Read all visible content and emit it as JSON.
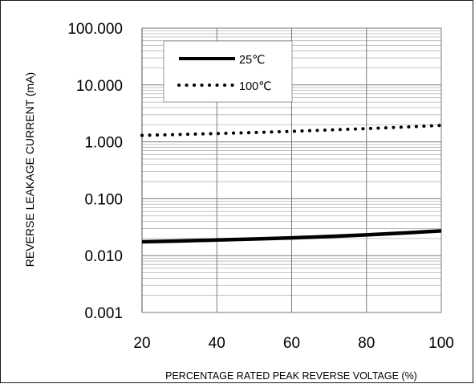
{
  "chart_data": {
    "type": "line",
    "title": "",
    "xlabel": "PERCENTAGE RATED PEAK REVERSE VOLTAGE (%)",
    "ylabel": "REVERSE LEAKAGE CURRENT (mA)",
    "xlim": [
      20,
      100
    ],
    "ylim": [
      0.001,
      100
    ],
    "yscale": "log",
    "grid": true,
    "legend_position": "top-left",
    "x_ticks": [
      20,
      40,
      60,
      80,
      100
    ],
    "x_tick_labels": [
      "20",
      "40",
      "60",
      "80",
      "100"
    ],
    "y_ticks": [
      0.001,
      0.01,
      0.1,
      1,
      10,
      100
    ],
    "y_tick_labels": [
      "0.001",
      "0.010",
      "0.100",
      "1.000",
      "10.000",
      "100.000"
    ],
    "x": [
      20,
      30,
      40,
      50,
      60,
      70,
      80,
      90,
      100
    ],
    "series": [
      {
        "name": "25℃",
        "style": "solid",
        "color": "#000000",
        "values": [
          0.0175,
          0.0181,
          0.0188,
          0.0196,
          0.0205,
          0.0217,
          0.0232,
          0.025,
          0.0272
        ]
      },
      {
        "name": "100℃",
        "style": "dotted",
        "color": "#000000",
        "values": [
          1.3,
          1.35,
          1.4,
          1.46,
          1.53,
          1.62,
          1.71,
          1.82,
          1.95
        ]
      }
    ]
  }
}
